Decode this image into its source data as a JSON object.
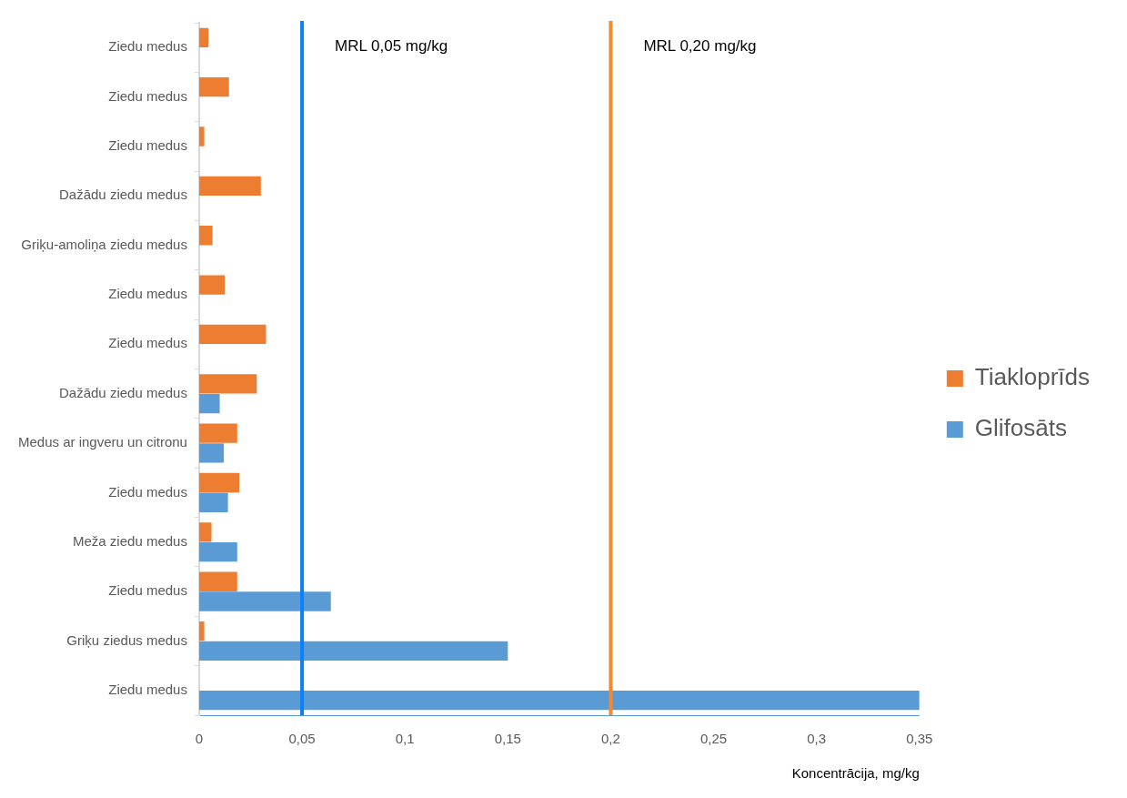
{
  "chart_data": {
    "type": "bar",
    "orientation": "horizontal",
    "xlabel": "Koncentrācija, mg/kg",
    "categories": [
      "Ziedu medus",
      "Ziedu medus",
      "Ziedu medus",
      "Dažādu ziedu medus",
      "Griķu-amoliņa ziedu medus",
      "Ziedu medus",
      "Ziedu medus",
      "Dažādu ziedu medus",
      "Medus ar ingveru un citronu",
      "Ziedu medus",
      "Meža ziedu medus",
      "Ziedu medus",
      "Griķu ziedus medus",
      "Ziedu medus"
    ],
    "series": [
      {
        "name": "Tiakloprīds",
        "color": "#ed7d31",
        "values": [
          0.0045,
          0.0145,
          0.0025,
          0.03,
          0.0065,
          0.0125,
          0.0325,
          0.028,
          0.0185,
          0.0195,
          0.006,
          0.0185,
          0.0025,
          null
        ]
      },
      {
        "name": "Glifosāts",
        "color": "#5b9bd5",
        "values": [
          null,
          null,
          null,
          null,
          null,
          null,
          null,
          0.01,
          0.012,
          0.014,
          0.0185,
          0.064,
          0.15,
          0.35
        ]
      }
    ],
    "xlim": [
      0,
      0.35
    ],
    "xticks": [
      0,
      {
        "value": 0.05,
        "label": "0,05"
      },
      {
        "value": 0.1,
        "label": "0,1"
      },
      {
        "value": 0.15,
        "label": "0,15"
      },
      {
        "value": 0.2,
        "label": "0,2"
      },
      {
        "value": 0.25,
        "label": "0,25"
      },
      {
        "value": 0.3,
        "label": "0,3"
      },
      {
        "value": 0.35,
        "label": "0,35"
      }
    ],
    "ref_lines": [
      {
        "axis": "x",
        "value": 0.05,
        "label": "MRL 0,05 mg/kg",
        "color": "#0a80ff"
      },
      {
        "axis": "x",
        "value": 0.2,
        "label": "MRL 0,20 mg/kg",
        "color": "#f5892f"
      }
    ],
    "grid": false,
    "legend": "right"
  }
}
